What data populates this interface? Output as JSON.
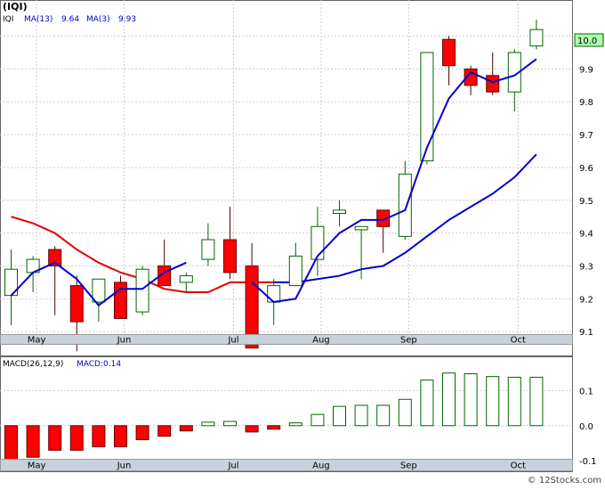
{
  "chart_data": [
    {
      "type": "candlestick",
      "title": "(IQI)",
      "legend": [
        {
          "label": "IQI",
          "color": "#000000"
        },
        {
          "label": "MA(13)",
          "value": "9.64",
          "color": "#0000cc"
        },
        {
          "label": "MA(3)",
          "value": "9.93",
          "color": "#0000cc"
        }
      ],
      "last_price_label": "10.0",
      "y_ticks": [
        "10.0",
        "9.9",
        "9.8",
        "9.7",
        "9.6",
        "9.5",
        "9.4",
        "9.3",
        "9.2",
        "9.1"
      ],
      "ylim": [
        9.03,
        10.11
      ],
      "x_ticks": [
        "May",
        "Jun",
        "Jul",
        "Aug",
        "Sep",
        "Oct"
      ],
      "x_tick_index": [
        1,
        5,
        10,
        14,
        18,
        23
      ],
      "grid": true,
      "candles": [
        {
          "o": 9.21,
          "h": 9.35,
          "l": 9.12,
          "c": 9.29,
          "up": true
        },
        {
          "o": 9.28,
          "h": 9.33,
          "l": 9.22,
          "c": 9.32,
          "up": true
        },
        {
          "o": 9.35,
          "h": 9.36,
          "l": 9.15,
          "c": 9.3,
          "up": false
        },
        {
          "o": 9.24,
          "h": 9.27,
          "l": 9.04,
          "c": 9.13,
          "up": false
        },
        {
          "o": 9.19,
          "h": 9.26,
          "l": 9.13,
          "c": 9.26,
          "up": true
        },
        {
          "o": 9.25,
          "h": 9.27,
          "l": 9.14,
          "c": 9.14,
          "up": false
        },
        {
          "o": 9.16,
          "h": 9.3,
          "l": 9.15,
          "c": 9.29,
          "up": true
        },
        {
          "o": 9.3,
          "h": 9.38,
          "l": 9.24,
          "c": 9.24,
          "up": false
        },
        {
          "o": 9.25,
          "h": 9.28,
          "l": 9.22,
          "c": 9.27,
          "up": true
        },
        {
          "o": 9.32,
          "h": 9.43,
          "l": 9.3,
          "c": 9.38,
          "up": true
        },
        {
          "o": 9.38,
          "h": 9.48,
          "l": 9.26,
          "c": 9.28,
          "up": false
        },
        {
          "o": 9.3,
          "h": 9.37,
          "l": 9.05,
          "c": 9.05,
          "up": false
        },
        {
          "o": 9.19,
          "h": 9.26,
          "l": 9.12,
          "c": 9.24,
          "up": true
        },
        {
          "o": 9.24,
          "h": 9.37,
          "l": 9.24,
          "c": 9.33,
          "up": true
        },
        {
          "o": 9.32,
          "h": 9.48,
          "l": 9.27,
          "c": 9.42,
          "up": true
        },
        {
          "o": 9.46,
          "h": 9.5,
          "l": 9.42,
          "c": 9.47,
          "up": true
        },
        {
          "o": 9.41,
          "h": 9.42,
          "l": 9.26,
          "c": 9.42,
          "up": true
        },
        {
          "o": 9.47,
          "h": 9.47,
          "l": 9.34,
          "c": 9.42,
          "up": false
        },
        {
          "o": 9.39,
          "h": 9.62,
          "l": 9.38,
          "c": 9.58,
          "up": true
        },
        {
          "o": 9.62,
          "h": 9.95,
          "l": 9.61,
          "c": 9.95,
          "up": true
        },
        {
          "o": 9.99,
          "h": 10.0,
          "l": 9.85,
          "c": 9.91,
          "up": false
        },
        {
          "o": 9.9,
          "h": 9.91,
          "l": 9.82,
          "c": 9.85,
          "up": false
        },
        {
          "o": 9.88,
          "h": 9.95,
          "l": 9.82,
          "c": 9.83,
          "up": false
        },
        {
          "o": 9.83,
          "h": 9.96,
          "l": 9.77,
          "c": 9.95,
          "up": true
        },
        {
          "o": 9.97,
          "h": 10.05,
          "l": 9.96,
          "c": 10.02,
          "up": true
        }
      ],
      "ma_fast": [
        9.21,
        9.28,
        9.31,
        9.26,
        9.18,
        9.23,
        9.23,
        9.28,
        9.31,
        null,
        null,
        9.25,
        9.19,
        9.2,
        9.33,
        9.4,
        9.44,
        9.44,
        9.47,
        9.66,
        9.81,
        9.89,
        9.86,
        9.88,
        9.93
      ],
      "ma_slow": [
        9.45,
        9.43,
        9.4,
        9.35,
        9.31,
        9.28,
        9.26,
        9.23,
        9.22,
        9.22,
        9.25,
        9.25,
        9.25,
        9.25,
        9.26,
        9.27,
        9.29,
        9.3,
        9.34,
        9.39,
        9.44,
        9.48,
        9.52,
        9.57,
        9.64
      ],
      "ma_slow_color_changes_at": 12,
      "colors": {
        "up": "#006600",
        "down": "#ff0000",
        "ma_fast": "#0000cc",
        "ma_slow_early": "#e00000",
        "ma_slow_late": "#0000cc"
      }
    },
    {
      "type": "bar",
      "title": "MACD(26,12,9)",
      "value_label": "MACD:0.14",
      "y_ticks": [
        "0.1",
        "0.0",
        "-0.1"
      ],
      "ylim": [
        -0.125,
        0.195
      ],
      "values": [
        -0.11,
        -0.09,
        -0.07,
        -0.07,
        -0.06,
        -0.06,
        -0.04,
        -0.03,
        -0.015,
        0.01,
        0.012,
        -0.018,
        -0.01,
        0.008,
        0.032,
        0.055,
        0.058,
        0.058,
        0.075,
        0.13,
        0.15,
        0.148,
        0.14,
        0.138,
        0.138
      ],
      "colors": {
        "positive": "#006600",
        "negative": "#ff0000"
      }
    }
  ],
  "watermark": "© 12Stocks.com"
}
